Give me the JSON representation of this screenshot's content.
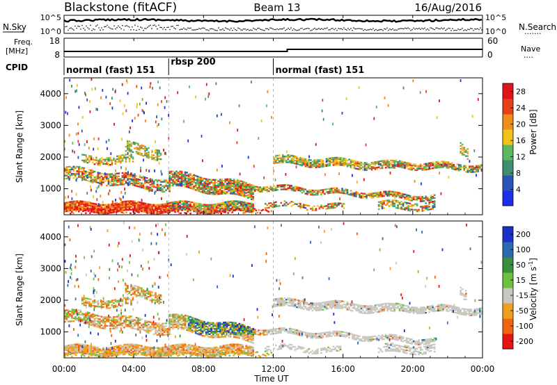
{
  "header": {
    "radar": "Blackstone (fitACF)",
    "beam": "Beam 13",
    "date": "16/Aug/2016"
  },
  "nsky_panel": {
    "left_label": "N.Sky",
    "right_label": "N.Search",
    "left_ticks": [
      "10^5",
      "10^0"
    ],
    "right_ticks": [
      "10^5",
      "10^0"
    ],
    "legend_dots": "......."
  },
  "freq_panel": {
    "left_label_line1": "Freq.",
    "left_label_line2": "[MHz]",
    "left_ticks": [
      "18",
      "8"
    ],
    "right_label": "Nave",
    "right_ticks": [
      "60",
      "0"
    ],
    "legend_dots": "...."
  },
  "cpid": {
    "label": "CPID",
    "segments": [
      {
        "name": "normal (fast) 151",
        "start_hour": 0
      },
      {
        "name": "rbsp 200",
        "start_hour": 6
      },
      {
        "name": "normal (fast) 151",
        "start_hour": 12
      }
    ]
  },
  "chart_data": [
    {
      "type": "heatmap",
      "panel": "power",
      "ylabel": "Slant Range [km]",
      "ylim": [
        180,
        4500
      ],
      "yticks": [
        "1000",
        "2000",
        "3000",
        "4000"
      ],
      "xlim_hours": [
        0,
        24
      ],
      "colorbar_label": "Power [dB]",
      "colorbar_ticks": [
        "4",
        "8",
        "12",
        "16",
        "20",
        "24",
        "28"
      ],
      "colorbar_range": [
        0,
        30
      ],
      "colors": [
        "#1f2ee8",
        "#2a55b8",
        "#3f8f6e",
        "#5ab860",
        "#f2c21a",
        "#f08c1a",
        "#e8401a",
        "#e0141a"
      ]
    },
    {
      "type": "heatmap",
      "panel": "velocity",
      "ylabel": "Slant Range [km]",
      "ylim": [
        180,
        4500
      ],
      "yticks": [
        "1000",
        "2000",
        "3000",
        "4000"
      ],
      "xlim_hours": [
        0,
        24
      ],
      "colorbar_label": "Velocity [m s",
      "colorbar_label_sup": "-1",
      "colorbar_label_end": "]",
      "colorbar_ticks": [
        "-200",
        "-100",
        "-50",
        "-15",
        "15",
        "50",
        "100",
        "200"
      ],
      "colors": [
        "#e81414",
        "#f06414",
        "#f0a020",
        "#c8c8c0",
        "#70c040",
        "#3a8f3a",
        "#2a6ab0",
        "#1a32c8"
      ]
    }
  ],
  "xaxis": {
    "label": "Time UT",
    "ticks": [
      "00:00",
      "04:00",
      "08:00",
      "12:00",
      "16:00",
      "20:00",
      "00:00"
    ]
  }
}
